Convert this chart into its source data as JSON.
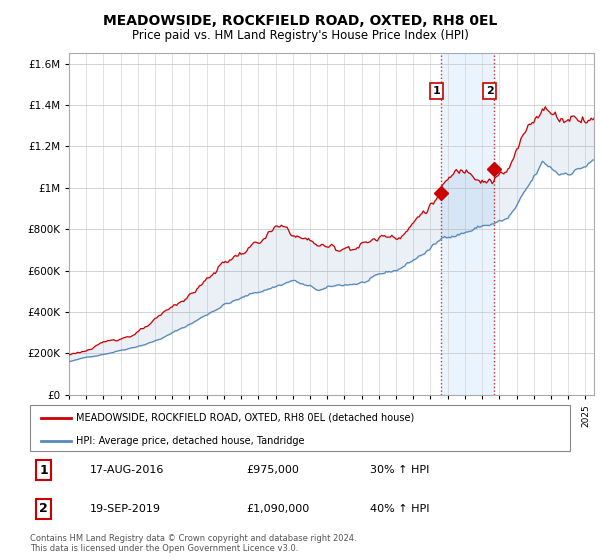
{
  "title": "MEADOWSIDE, ROCKFIELD ROAD, OXTED, RH8 0EL",
  "subtitle": "Price paid vs. HM Land Registry's House Price Index (HPI)",
  "ytick_values": [
    0,
    200000,
    400000,
    600000,
    800000,
    1000000,
    1200000,
    1400000,
    1600000
  ],
  "ylim": [
    0,
    1650000
  ],
  "legend_label_red": "MEADOWSIDE, ROCKFIELD ROAD, OXTED, RH8 0EL (detached house)",
  "legend_label_blue": "HPI: Average price, detached house, Tandridge",
  "sale1_date": "17-AUG-2016",
  "sale1_price": "£975,000",
  "sale1_hpi": "30% ↑ HPI",
  "sale1_year": 2016.62,
  "sale1_value": 975000,
  "sale2_date": "19-SEP-2019",
  "sale2_price": "£1,090,000",
  "sale2_hpi": "40% ↑ HPI",
  "sale2_year": 2019.71,
  "sale2_value": 1090000,
  "red_color": "#cc0000",
  "blue_color": "#5588bb",
  "shade_color": "#ddeeff",
  "background_color": "#ffffff",
  "grid_color": "#cccccc",
  "copyright_text": "Contains HM Land Registry data © Crown copyright and database right 2024.\nThis data is licensed under the Open Government Licence v3.0.",
  "xmin": 1995,
  "xmax": 2025.5
}
